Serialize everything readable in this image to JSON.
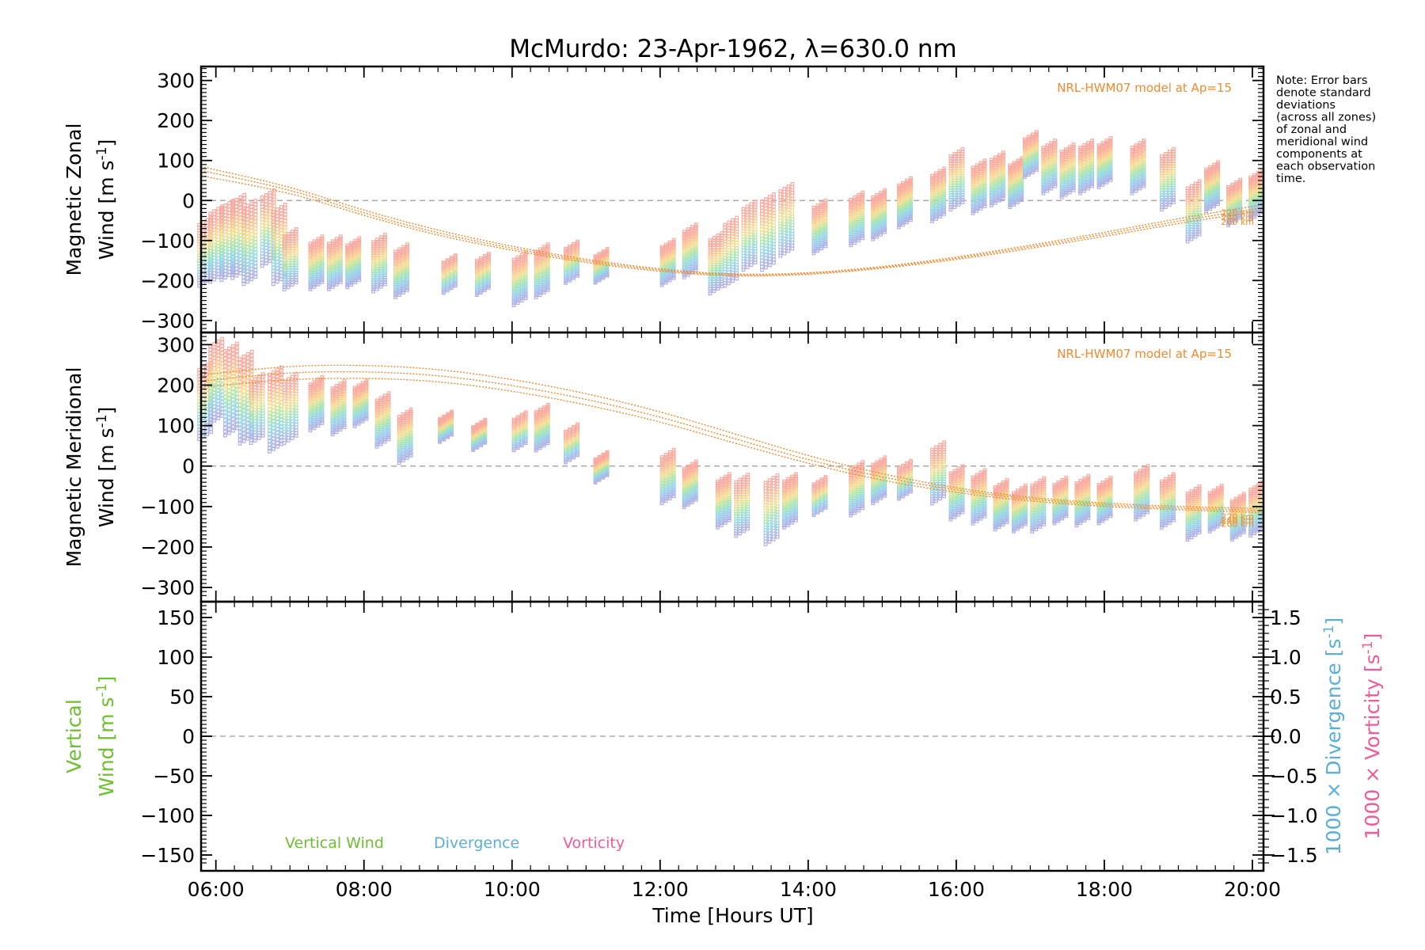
{
  "figure": {
    "title": "McMurdo: 23-Apr-1962, λ=630.0 nm",
    "note": "Note: Error bars denote standard deviations (across all zones) of zonal and meridional wind components at each observation time.",
    "note_lines": [
      "Note: Error bars",
      "denote standard",
      "deviations",
      "(across all zones)",
      "of zonal and",
      "meridional wind",
      "components at",
      "each observation",
      "time."
    ],
    "x_axis_label": "Time [Hours UT]",
    "x_ticks": [
      "06:00",
      "08:00",
      "10:00",
      "12:00",
      "14:00",
      "16:00",
      "18:00",
      "20:00"
    ],
    "colors": {
      "model": "#f08a30",
      "zero_line": "#999999",
      "vertical": "#6cbf2f",
      "divergence": "#5aaed8",
      "vorticity": "#ef5b96",
      "axis": "#000000"
    }
  },
  "chart_data": [
    {
      "type": "scatter",
      "panel": "zonal",
      "ylabel_line1": "Magnetic Zonal",
      "ylabel_line2": "Wind [m s",
      "ylabel_sup": "-1",
      "ylabel_close": "]",
      "ylim": [
        -330,
        335
      ],
      "xlim": [
        5.8,
        20.15
      ],
      "yticks": [
        300,
        200,
        100,
        0,
        -100,
        -200,
        -300
      ],
      "ytick_labels": [
        "300",
        "200",
        "100",
        "0",
        "−100",
        "−200",
        "−300"
      ],
      "model_label": "NRL-HWM07 model at Ap=15",
      "model_altitudes": [
        "220 km",
        "240 km",
        "260 km"
      ],
      "model_series": [
        {
          "name": "220 km",
          "x": [
            5.8,
            7,
            8,
            9,
            10,
            11,
            12,
            13,
            14,
            15,
            16,
            17,
            18,
            19,
            20.15
          ],
          "y": [
            85,
            35,
            -25,
            -75,
            -115,
            -148,
            -172,
            -186,
            -182,
            -166,
            -142,
            -112,
            -80,
            -45,
            -10
          ]
        },
        {
          "name": "240 km",
          "x": [
            5.8,
            7,
            8,
            9,
            10,
            11,
            12,
            13,
            14,
            15,
            16,
            17,
            18,
            19,
            20.15
          ],
          "y": [
            75,
            28,
            -32,
            -82,
            -120,
            -152,
            -175,
            -188,
            -184,
            -168,
            -145,
            -116,
            -85,
            -51,
            -18
          ]
        },
        {
          "name": "260 km",
          "x": [
            5.8,
            7,
            8,
            9,
            10,
            11,
            12,
            13,
            14,
            15,
            16,
            17,
            18,
            19,
            20.15
          ],
          "y": [
            62,
            20,
            -38,
            -88,
            -125,
            -156,
            -178,
            -190,
            -186,
            -170,
            -148,
            -120,
            -90,
            -57,
            -25
          ]
        }
      ],
      "observations": [
        [
          5.85,
          -120,
          80
        ],
        [
          6.0,
          -100,
          90
        ],
        [
          6.15,
          -90,
          95
        ],
        [
          6.3,
          -80,
          100
        ],
        [
          6.45,
          -95,
          100
        ],
        [
          6.7,
          -60,
          90
        ],
        [
          6.85,
          -100,
          95
        ],
        [
          7.0,
          -140,
          70
        ],
        [
          7.35,
          -150,
          60
        ],
        [
          7.6,
          -150,
          60
        ],
        [
          7.85,
          -150,
          55
        ],
        [
          8.2,
          -150,
          65
        ],
        [
          8.5,
          -170,
          60
        ],
        [
          9.15,
          -180,
          40
        ],
        [
          9.6,
          -180,
          45
        ],
        [
          10.1,
          -190,
          60
        ],
        [
          10.4,
          -170,
          60
        ],
        [
          10.8,
          -150,
          45
        ],
        [
          11.2,
          -160,
          35
        ],
        [
          12.1,
          -150,
          50
        ],
        [
          12.4,
          -120,
          60
        ],
        [
          12.75,
          -150,
          70
        ],
        [
          12.95,
          -120,
          80
        ],
        [
          13.2,
          -80,
          80
        ],
        [
          13.45,
          -70,
          90
        ],
        [
          13.7,
          -40,
          85
        ],
        [
          14.15,
          -60,
          60
        ],
        [
          14.65,
          -40,
          60
        ],
        [
          14.95,
          -30,
          55
        ],
        [
          15.3,
          0,
          55
        ],
        [
          15.75,
          20,
          60
        ],
        [
          16.0,
          60,
          70
        ],
        [
          16.3,
          40,
          60
        ],
        [
          16.55,
          60,
          60
        ],
        [
          16.8,
          50,
          55
        ],
        [
          17.0,
          120,
          50
        ],
        [
          17.25,
          90,
          60
        ],
        [
          17.5,
          80,
          60
        ],
        [
          17.75,
          90,
          60
        ],
        [
          18.0,
          100,
          55
        ],
        [
          18.45,
          90,
          60
        ],
        [
          18.85,
          60,
          70
        ],
        [
          19.2,
          -20,
          70
        ],
        [
          19.45,
          40,
          55
        ],
        [
          19.75,
          0,
          50
        ],
        [
          20.05,
          20,
          55
        ]
      ]
    },
    {
      "type": "scatter",
      "panel": "meridional",
      "ylabel_line1": "Magnetic Meridional",
      "ylabel_line2": "Wind [m s",
      "ylabel_sup": "-1",
      "ylabel_close": "]",
      "ylim": [
        -335,
        330
      ],
      "xlim": [
        5.8,
        20.15
      ],
      "yticks": [
        300,
        200,
        100,
        0,
        -100,
        -200,
        -300
      ],
      "ytick_labels": [
        "300",
        "200",
        "100",
        "0",
        "−100",
        "−200",
        "−300"
      ],
      "model_label": "NRL-HWM07 model at Ap=15",
      "model_altitudes": [
        "220 km",
        "240 km",
        "260 km"
      ],
      "model_series": [
        {
          "name": "220 km",
          "x": [
            5.8,
            7,
            8,
            9,
            10,
            11,
            12,
            13,
            14,
            15,
            16,
            17,
            18,
            19,
            20.15
          ],
          "y": [
            225,
            248,
            250,
            240,
            215,
            180,
            135,
            80,
            25,
            -20,
            -55,
            -78,
            -92,
            -100,
            -105
          ]
        },
        {
          "name": "240 km",
          "x": [
            5.8,
            7,
            8,
            9,
            10,
            11,
            12,
            13,
            14,
            15,
            16,
            17,
            18,
            19,
            20.15
          ],
          "y": [
            210,
            232,
            234,
            225,
            200,
            166,
            122,
            68,
            15,
            -28,
            -60,
            -82,
            -96,
            -104,
            -110
          ]
        },
        {
          "name": "260 km",
          "x": [
            5.8,
            7,
            8,
            9,
            10,
            11,
            12,
            13,
            14,
            15,
            16,
            17,
            18,
            19,
            20.15
          ],
          "y": [
            195,
            215,
            218,
            210,
            186,
            152,
            110,
            57,
            6,
            -36,
            -66,
            -87,
            -100,
            -108,
            -115
          ]
        }
      ],
      "observations": [
        [
          5.85,
          170,
          90
        ],
        [
          6.0,
          220,
          100
        ],
        [
          6.2,
          200,
          110
        ],
        [
          6.4,
          180,
          110
        ],
        [
          6.55,
          150,
          80
        ],
        [
          6.8,
          150,
          100
        ],
        [
          7.0,
          150,
          80
        ],
        [
          7.35,
          160,
          60
        ],
        [
          7.65,
          150,
          60
        ],
        [
          7.95,
          160,
          50
        ],
        [
          8.25,
          120,
          60
        ],
        [
          8.55,
          80,
          60
        ],
        [
          9.1,
          100,
          30
        ],
        [
          9.55,
          80,
          30
        ],
        [
          10.1,
          90,
          40
        ],
        [
          10.4,
          100,
          50
        ],
        [
          10.8,
          60,
          40
        ],
        [
          11.2,
          0,
          30
        ],
        [
          12.1,
          -20,
          60
        ],
        [
          12.4,
          -40,
          50
        ],
        [
          12.85,
          -80,
          60
        ],
        [
          13.1,
          -90,
          70
        ],
        [
          13.5,
          -100,
          80
        ],
        [
          13.75,
          -80,
          60
        ],
        [
          14.15,
          -70,
          40
        ],
        [
          14.65,
          -50,
          60
        ],
        [
          14.95,
          -30,
          50
        ],
        [
          15.3,
          -30,
          40
        ],
        [
          15.75,
          -10,
          70
        ],
        [
          16.0,
          -60,
          60
        ],
        [
          16.3,
          -70,
          60
        ],
        [
          16.6,
          -90,
          55
        ],
        [
          16.85,
          -100,
          50
        ],
        [
          17.1,
          -90,
          60
        ],
        [
          17.4,
          -80,
          50
        ],
        [
          17.7,
          -80,
          55
        ],
        [
          18.0,
          -80,
          50
        ],
        [
          18.5,
          -60,
          60
        ],
        [
          18.85,
          -80,
          60
        ],
        [
          19.2,
          -110,
          60
        ],
        [
          19.5,
          -100,
          50
        ],
        [
          19.8,
          -120,
          50
        ],
        [
          20.05,
          -100,
          60
        ]
      ]
    },
    {
      "type": "line",
      "panel": "vertical",
      "ylabel_line1": "Vertical",
      "ylabel_line2": "Wind [m s",
      "ylabel_sup": "-1",
      "ylabel_close": "]",
      "ylim": [
        -170,
        170
      ],
      "xlim": [
        5.8,
        20.15
      ],
      "yticks": [
        150,
        100,
        50,
        0,
        -50,
        -100,
        -150
      ],
      "ytick_labels": [
        "150",
        "100",
        "50",
        "0",
        "−50",
        "−100",
        "−150"
      ],
      "right_ylim": [
        -1.7,
        1.7
      ],
      "right_yticks": [
        1.5,
        1.0,
        0.5,
        0.0,
        -0.5,
        -1.0,
        -1.5
      ],
      "right_ytick_labels": [
        "1.5",
        "1.0",
        "0.5",
        "0.0",
        "−0.5",
        "−1.0",
        "−1.5"
      ],
      "right_label_divergence": "1000 × Divergence [s",
      "right_label_vorticity": "1000 × Vorticity [s",
      "right_label_sup": "-1",
      "right_label_close": "]",
      "legend": [
        "Vertical Wind",
        "Divergence",
        "Vorticity"
      ],
      "series": []
    }
  ]
}
